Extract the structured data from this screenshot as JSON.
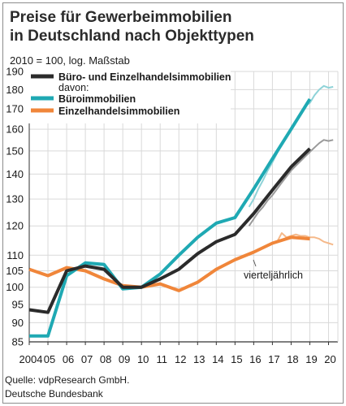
{
  "title_line1": "Preise für Gewerbeimmobilien",
  "title_line2": "in Deutschland nach Objekttypen",
  "subtitle": "2010 = 100, log. Maßstab",
  "source": "Quelle: vdpResearch GmbH.",
  "publisher": "Deutsche Bundesbank",
  "chart_data": {
    "type": "line",
    "yscale": "log",
    "ylim": [
      85,
      190
    ],
    "yticks": [
      85,
      90,
      95,
      100,
      105,
      110,
      120,
      130,
      140,
      150,
      160,
      170,
      180,
      190
    ],
    "xlim": [
      2004,
      2020.5
    ],
    "xticks": [
      2004,
      2005,
      2006,
      2007,
      2008,
      2009,
      2010,
      2011,
      2012,
      2013,
      2014,
      2015,
      2016,
      2017,
      2018,
      2019,
      2020
    ],
    "xticklabels": [
      "2004",
      "05",
      "06",
      "07",
      "08",
      "09",
      "10",
      "11",
      "12",
      "13",
      "14",
      "15",
      "16",
      "17",
      "18",
      "19",
      "20"
    ],
    "legend": {
      "total_label": "Büro- und Einzelhandelsimmobilien",
      "of_which": "davon:",
      "office_label": "Büroimmobilien",
      "retail_label": "Einzelhandelsimmobilien"
    },
    "annotation": "vierteljährlich",
    "colors": {
      "total": "#2b2b2b",
      "office": "#1fa9b3",
      "retail": "#f0863a",
      "office_q": "#8fd3d8",
      "total_q": "#9a9a9a",
      "retail_q": "#f5b98a",
      "grid": "#d9d9d9"
    },
    "series": [
      {
        "key": "total",
        "x": [
          2004,
          2005,
          2006,
          2007,
          2008,
          2009,
          2010,
          2011,
          2012,
          2013,
          2014,
          2015,
          2016,
          2017,
          2018,
          2019
        ],
        "values": [
          93.5,
          92.8,
          105,
          106.5,
          105.5,
          100,
          100,
          102.5,
          105.5,
          110.5,
          114.5,
          117,
          124.5,
          133.5,
          143,
          151
        ]
      },
      {
        "key": "office",
        "x": [
          2004,
          2005,
          2006,
          2007,
          2008,
          2009,
          2010,
          2011,
          2012,
          2013,
          2014,
          2015,
          2016,
          2017,
          2018,
          2019
        ],
        "values": [
          86.5,
          86.5,
          103.5,
          107.5,
          107,
          99.5,
          100,
          104,
          110,
          116,
          121,
          123,
          134,
          146.5,
          160,
          175
        ]
      },
      {
        "key": "retail",
        "x": [
          2004,
          2005,
          2006,
          2007,
          2008,
          2009,
          2010,
          2011,
          2012,
          2013,
          2014,
          2015,
          2016,
          2017,
          2018,
          2019
        ],
        "values": [
          105.5,
          103.5,
          106,
          105,
          102.5,
          100.5,
          100,
          101,
          99,
          101.5,
          105.5,
          108.5,
          111,
          114,
          116,
          115.5
        ]
      },
      {
        "key": "office_q",
        "x": [
          2015.75,
          2016,
          2016.25,
          2016.5,
          2016.75,
          2017,
          2017.25,
          2017.5,
          2017.75,
          2018,
          2018.25,
          2018.5,
          2018.75,
          2019,
          2019.25,
          2019.5,
          2019.75,
          2020,
          2020.25
        ],
        "values": [
          127,
          130,
          134,
          137.5,
          141.5,
          145,
          149,
          153,
          157,
          160.5,
          164,
          167.5,
          171.5,
          173,
          177,
          180,
          182,
          181,
          181.5
        ]
      },
      {
        "key": "total_q",
        "x": [
          2015.75,
          2016,
          2016.25,
          2016.5,
          2016.75,
          2017,
          2017.25,
          2017.5,
          2017.75,
          2018,
          2018.25,
          2018.5,
          2018.75,
          2019,
          2019.25,
          2019.5,
          2019.75,
          2020,
          2020.25
        ],
        "values": [
          120,
          122.5,
          125,
          127,
          129.5,
          131.5,
          134,
          136.5,
          139,
          141.5,
          143.5,
          145.5,
          147.5,
          149.5,
          151.5,
          153.5,
          155,
          154.5,
          155
        ]
      },
      {
        "key": "retail_q",
        "x": [
          2015.75,
          2016,
          2016.25,
          2016.5,
          2016.75,
          2017,
          2017.25,
          2017.5,
          2017.75,
          2018,
          2018.25,
          2018.5,
          2018.75,
          2019,
          2019.25,
          2019.5,
          2019.75,
          2020,
          2020.25
        ],
        "values": [
          110,
          111,
          112,
          112.5,
          113.5,
          114,
          114.5,
          117.5,
          116,
          116.5,
          117,
          116.5,
          116.5,
          116,
          116,
          115.5,
          114.5,
          114,
          113.5
        ]
      }
    ]
  }
}
